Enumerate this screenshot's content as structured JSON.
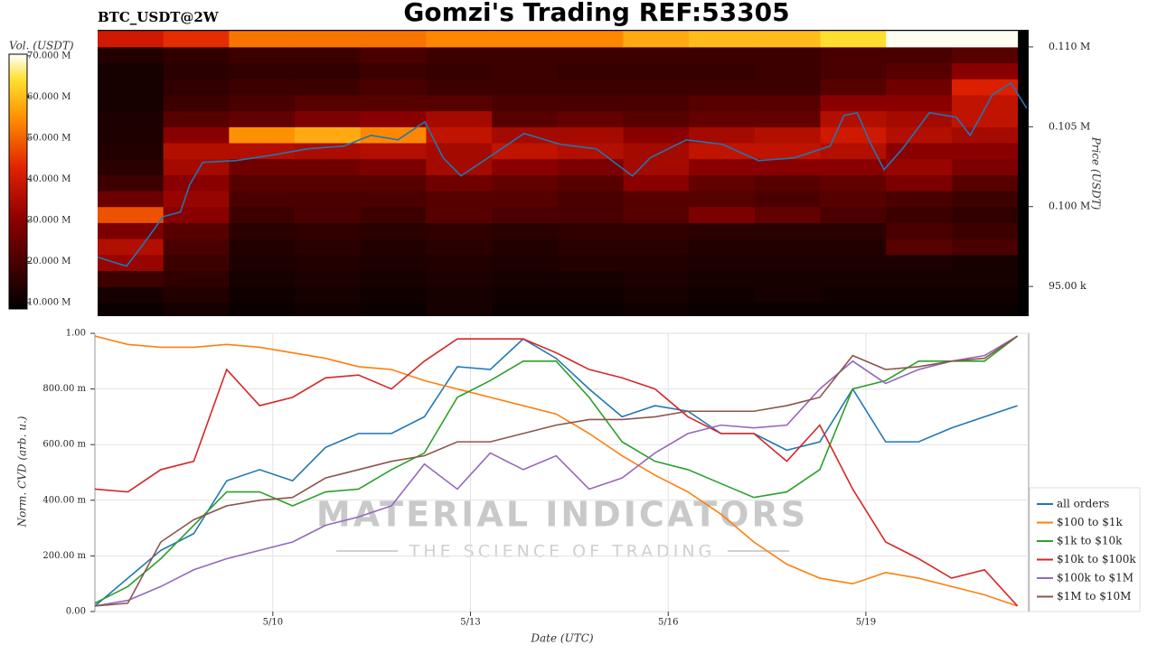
{
  "chart_data": [
    {
      "type": "heatmap",
      "title": "Gomzi's Trading REF:53305",
      "subtitle": "BTC_USDT@2W",
      "colorbar_label": "Vol. (USDT)",
      "y_label": "Price (USDT)",
      "xlim": [
        7.3,
        21.47
      ],
      "ylim": [
        93140,
        111070
      ],
      "yticks": [
        {
          "value": 110000,
          "label": "0.110 M"
        },
        {
          "value": 105000,
          "label": "0.105 M"
        },
        {
          "value": 100000,
          "label": "0.100 M"
        },
        {
          "value": 95000,
          "label": "95.00 k"
        }
      ],
      "zlim": [
        8.5,
        70.4
      ],
      "zticks": [
        {
          "value": 70,
          "label": "70.000 M"
        },
        {
          "value": 60,
          "label": "60.000 M"
        },
        {
          "value": 50,
          "label": "50.000 M"
        },
        {
          "value": 40,
          "label": "40.000 M"
        },
        {
          "value": 30,
          "label": "30.000 M"
        },
        {
          "value": 20,
          "label": "20.000 M"
        },
        {
          "value": 10,
          "label": "10.000 M"
        }
      ],
      "x_bins": [
        7.3,
        8.3,
        9.3,
        10.3,
        11.3,
        12.3,
        13.3,
        14.3,
        15.3,
        16.3,
        17.3,
        18.3,
        19.3,
        20.3,
        21.3
      ],
      "y_bins": [
        93000,
        94000,
        95000,
        96000,
        97000,
        98000,
        99000,
        100000,
        101000,
        102000,
        103000,
        104000,
        105000,
        106000,
        107000,
        108000,
        109000,
        110000,
        111000
      ],
      "z": [
        [
          10,
          12,
          10,
          11,
          10,
          12,
          10,
          10,
          11,
          10,
          10,
          10,
          10,
          10
        ],
        [
          12,
          14,
          11,
          12,
          11,
          12,
          11,
          11,
          12,
          11,
          12,
          11,
          11,
          11
        ],
        [
          18,
          16,
          12,
          13,
          12,
          13,
          12,
          12,
          13,
          12,
          12,
          12,
          12,
          12
        ],
        [
          32,
          18,
          13,
          14,
          13,
          14,
          13,
          14,
          14,
          13,
          13,
          13,
          13,
          12
        ],
        [
          36,
          20,
          14,
          15,
          14,
          15,
          14,
          15,
          15,
          14,
          14,
          14,
          22,
          20
        ],
        [
          28,
          22,
          15,
          16,
          15,
          16,
          15,
          16,
          16,
          15,
          15,
          15,
          20,
          18
        ],
        [
          48,
          30,
          18,
          20,
          18,
          22,
          20,
          20,
          22,
          28,
          24,
          20,
          18,
          16
        ],
        [
          25,
          32,
          20,
          20,
          20,
          22,
          22,
          20,
          22,
          22,
          20,
          22,
          20,
          18
        ],
        [
          18,
          30,
          22,
          22,
          22,
          26,
          24,
          22,
          30,
          24,
          22,
          24,
          28,
          22
        ],
        [
          15,
          34,
          26,
          26,
          28,
          34,
          30,
          28,
          34,
          30,
          30,
          30,
          32,
          28
        ],
        [
          14,
          36,
          36,
          35,
          36,
          34,
          38,
          36,
          34,
          38,
          38,
          36,
          30,
          30
        ],
        [
          13,
          30,
          55,
          58,
          54,
          38,
          34,
          34,
          30,
          34,
          36,
          40,
          36,
          34
        ],
        [
          13,
          22,
          24,
          28,
          30,
          34,
          22,
          24,
          22,
          24,
          24,
          36,
          34,
          38
        ],
        [
          12,
          18,
          20,
          22,
          22,
          22,
          20,
          20,
          20,
          22,
          22,
          30,
          30,
          38
        ],
        [
          12,
          16,
          18,
          18,
          20,
          18,
          18,
          18,
          18,
          18,
          18,
          22,
          26,
          42
        ],
        [
          12,
          15,
          16,
          16,
          18,
          17,
          18,
          17,
          17,
          17,
          18,
          20,
          22,
          30
        ],
        [
          14,
          16,
          18,
          18,
          20,
          18,
          18,
          18,
          18,
          18,
          18,
          20,
          20,
          22
        ],
        [
          40,
          44,
          52,
          52,
          52,
          54,
          54,
          54,
          58,
          60,
          60,
          64,
          70,
          70
        ]
      ],
      "line": {
        "color": "#1f77b4",
        "x": [
          7.3,
          7.74,
          8.0,
          8.3,
          8.56,
          8.7,
          8.9,
          9.4,
          9.95,
          10.5,
          11.05,
          11.46,
          11.87,
          12.28,
          12.56,
          12.83,
          13.24,
          13.79,
          14.34,
          14.89,
          15.44,
          15.71,
          16.26,
          16.81,
          17.36,
          17.9,
          18.45,
          18.66,
          18.86,
          19.07,
          19.27,
          19.55,
          19.96,
          20.37,
          20.58,
          20.92,
          21.2,
          21.44
        ],
        "values": [
          96835,
          96270,
          97680,
          99380,
          99660,
          101360,
          102770,
          102880,
          103220,
          103620,
          103790,
          104460,
          104180,
          105310,
          103050,
          101920,
          103050,
          104580,
          103900,
          103620,
          101920,
          103050,
          104180,
          103900,
          102880,
          103050,
          103790,
          105710,
          105880,
          103900,
          102320,
          103620,
          105880,
          105600,
          104460,
          107010,
          107740,
          106160
        ]
      }
    },
    {
      "type": "line",
      "y_label": "Norm. CVD (arb. u.)",
      "x_label": "Date (UTC)",
      "grid": true,
      "legend": "lower right",
      "watermark": [
        "MATERIAL INDICATORS",
        "THE SCIENCE OF TRADING"
      ],
      "xlim": [
        7.3,
        21.47
      ],
      "ylim": [
        0,
        1
      ],
      "xticks": [
        {
          "value": 10,
          "label": "5/10"
        },
        {
          "value": 13,
          "label": "5/13"
        },
        {
          "value": 16,
          "label": "5/16"
        },
        {
          "value": 19,
          "label": "5/19"
        }
      ],
      "yticks": [
        {
          "value": 1,
          "label": "1.00"
        },
        {
          "value": 0.8,
          "label": "800.00 m"
        },
        {
          "value": 0.6,
          "label": "600.00 m"
        },
        {
          "value": 0.4,
          "label": "400.00 m"
        },
        {
          "value": 0.2,
          "label": "200.00 m"
        },
        {
          "value": 0,
          "label": "0.00"
        }
      ],
      "x": [
        7.3,
        7.8,
        8.3,
        8.8,
        9.3,
        9.8,
        10.3,
        10.8,
        11.3,
        11.8,
        12.3,
        12.8,
        13.3,
        13.8,
        14.3,
        14.8,
        15.3,
        15.8,
        16.3,
        16.8,
        17.3,
        17.8,
        18.3,
        18.8,
        19.3,
        19.8,
        20.3,
        20.8,
        21.3
      ],
      "series": [
        {
          "name": "all orders",
          "color": "#1f77b4",
          "values": [
            0.02,
            0.12,
            0.22,
            0.28,
            0.47,
            0.51,
            0.47,
            0.59,
            0.64,
            0.64,
            0.7,
            0.88,
            0.87,
            0.98,
            0.91,
            0.8,
            0.7,
            0.74,
            0.72,
            0.64,
            0.64,
            0.58,
            0.61,
            0.8,
            0.61,
            0.61,
            0.66,
            0.7,
            0.74
          ]
        },
        {
          "name": "$100 to $1k",
          "color": "#ff7f0e",
          "values": [
            0.99,
            0.96,
            0.95,
            0.95,
            0.96,
            0.95,
            0.93,
            0.91,
            0.88,
            0.87,
            0.83,
            0.8,
            0.77,
            0.74,
            0.71,
            0.64,
            0.56,
            0.49,
            0.43,
            0.35,
            0.25,
            0.17,
            0.12,
            0.1,
            0.14,
            0.12,
            0.09,
            0.06,
            0.02
          ]
        },
        {
          "name": "$1k to $10k",
          "color": "#2ca02c",
          "values": [
            0.03,
            0.09,
            0.19,
            0.31,
            0.43,
            0.43,
            0.38,
            0.43,
            0.44,
            0.51,
            0.57,
            0.77,
            0.83,
            0.9,
            0.9,
            0.77,
            0.61,
            0.54,
            0.51,
            0.46,
            0.41,
            0.43,
            0.51,
            0.8,
            0.83,
            0.9,
            0.9,
            0.9,
            0.99
          ]
        },
        {
          "name": "$10k to $100k",
          "color": "#d62728",
          "values": [
            0.44,
            0.43,
            0.51,
            0.54,
            0.87,
            0.74,
            0.77,
            0.84,
            0.85,
            0.8,
            0.9,
            0.98,
            0.98,
            0.98,
            0.93,
            0.87,
            0.84,
            0.8,
            0.7,
            0.64,
            0.64,
            0.54,
            0.67,
            0.44,
            0.25,
            0.19,
            0.12,
            0.15,
            0.02
          ]
        },
        {
          "name": "$100k to $1M",
          "color": "#9467bd",
          "values": [
            0.02,
            0.04,
            0.09,
            0.15,
            0.19,
            0.22,
            0.25,
            0.31,
            0.34,
            0.38,
            0.53,
            0.44,
            0.57,
            0.51,
            0.56,
            0.44,
            0.48,
            0.57,
            0.64,
            0.67,
            0.66,
            0.67,
            0.8,
            0.9,
            0.82,
            0.87,
            0.9,
            0.92,
            0.99
          ]
        },
        {
          "name": "$1M to $10M",
          "color": "#8c564b",
          "values": [
            0.02,
            0.03,
            0.25,
            0.33,
            0.38,
            0.4,
            0.41,
            0.48,
            0.51,
            0.54,
            0.56,
            0.61,
            0.61,
            0.64,
            0.67,
            0.69,
            0.69,
            0.7,
            0.72,
            0.72,
            0.72,
            0.74,
            0.77,
            0.92,
            0.87,
            0.88,
            0.9,
            0.91,
            0.99
          ]
        }
      ]
    }
  ]
}
